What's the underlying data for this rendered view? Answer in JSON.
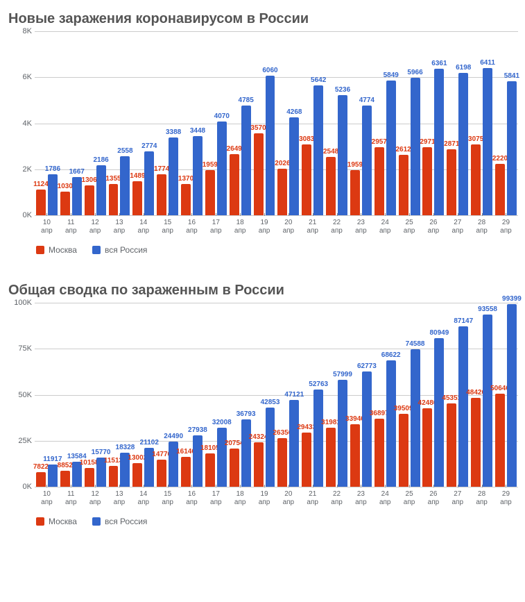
{
  "legend": {
    "moscow": "Москва",
    "russia": "вся Россия"
  },
  "colors": {
    "moscow": "#dc3912",
    "russia": "#3366cc",
    "moscow_text": "#dc3912",
    "russia_text": "#3366cc",
    "grid": "#cccccc",
    "axis": "#888888",
    "title": "#555555",
    "tick": "#5f6368",
    "background": "#ffffff"
  },
  "x_labels": [
    {
      "d": "10",
      "m": "апр"
    },
    {
      "d": "11",
      "m": "апр"
    },
    {
      "d": "12",
      "m": "апр"
    },
    {
      "d": "13",
      "m": "апр"
    },
    {
      "d": "14",
      "m": "апр"
    },
    {
      "d": "15",
      "m": "апр"
    },
    {
      "d": "16",
      "m": "апр"
    },
    {
      "d": "17",
      "m": "апр"
    },
    {
      "d": "18",
      "m": "апр"
    },
    {
      "d": "19",
      "m": "апр"
    },
    {
      "d": "20",
      "m": "апр"
    },
    {
      "d": "21",
      "m": "апр"
    },
    {
      "d": "22",
      "m": "апр"
    },
    {
      "d": "23",
      "m": "апр"
    },
    {
      "d": "24",
      "m": "апр"
    },
    {
      "d": "25",
      "m": "апр"
    },
    {
      "d": "26",
      "m": "апр"
    },
    {
      "d": "27",
      "m": "апр"
    },
    {
      "d": "28",
      "m": "апр"
    },
    {
      "d": "29",
      "m": "апр"
    }
  ],
  "chart1": {
    "title": "Новые заражения коронавирусом в России",
    "type": "bar-grouped",
    "ymax": 8000,
    "yticks": [
      {
        "v": 0,
        "label": "0K"
      },
      {
        "v": 2000,
        "label": "2K"
      },
      {
        "v": 4000,
        "label": "4K"
      },
      {
        "v": 6000,
        "label": "6K"
      },
      {
        "v": 8000,
        "label": "8K"
      }
    ],
    "bar_width": 0.4,
    "data": [
      {
        "moscow": 1124,
        "russia": 1786
      },
      {
        "moscow": 1030,
        "russia": 1667
      },
      {
        "moscow": 1306,
        "russia": 2186
      },
      {
        "moscow": 1355,
        "russia": 2558
      },
      {
        "moscow": 1489,
        "russia": 2774
      },
      {
        "moscow": 1774,
        "russia": 3388
      },
      {
        "moscow": 1370,
        "russia": 3448
      },
      {
        "moscow": 1959,
        "russia": 4070
      },
      {
        "moscow": 2649,
        "russia": 4785
      },
      {
        "moscow": 3570,
        "russia": 6060
      },
      {
        "moscow": 2026,
        "russia": 4268
      },
      {
        "moscow": 3083,
        "russia": 5642
      },
      {
        "moscow": 2548,
        "russia": 5236
      },
      {
        "moscow": 1959,
        "russia": 4774
      },
      {
        "moscow": 2957,
        "russia": 5849
      },
      {
        "moscow": 2612,
        "russia": 5966
      },
      {
        "moscow": 2971,
        "russia": 6361
      },
      {
        "moscow": 2871,
        "russia": 6198
      },
      {
        "moscow": 3075,
        "russia": 6411
      },
      {
        "moscow": 2220,
        "russia": 5841
      }
    ]
  },
  "chart2": {
    "title": "Общая сводка по зараженным в России",
    "type": "bar-grouped",
    "ymax": 100000,
    "yticks": [
      {
        "v": 0,
        "label": "0K"
      },
      {
        "v": 25000,
        "label": "25K"
      },
      {
        "v": 50000,
        "label": "50K"
      },
      {
        "v": 75000,
        "label": "75K"
      },
      {
        "v": 100000,
        "label": "100K"
      }
    ],
    "bar_width": 0.4,
    "data": [
      {
        "moscow": 7822,
        "russia": 11917
      },
      {
        "moscow": 8852,
        "russia": 13584
      },
      {
        "moscow": 10158,
        "russia": 15770
      },
      {
        "moscow": 11513,
        "russia": 18328
      },
      {
        "moscow": 13002,
        "russia": 21102
      },
      {
        "moscow": 14776,
        "russia": 24490
      },
      {
        "moscow": 16146,
        "russia": 27938
      },
      {
        "moscow": 18105,
        "russia": 32008
      },
      {
        "moscow": 20754,
        "russia": 36793
      },
      {
        "moscow": 24324,
        "russia": 42853
      },
      {
        "moscow": 26350,
        "russia": 47121
      },
      {
        "moscow": 29433,
        "russia": 52763
      },
      {
        "moscow": 31981,
        "russia": 57999
      },
      {
        "moscow": 33940,
        "russia": 62773
      },
      {
        "moscow": 36897,
        "russia": 68622
      },
      {
        "moscow": 39509,
        "russia": 74588
      },
      {
        "moscow": 42480,
        "russia": 80949
      },
      {
        "moscow": 45351,
        "russia": 87147
      },
      {
        "moscow": 48426,
        "russia": 93558
      },
      {
        "moscow": 50646,
        "russia": 99399
      }
    ]
  }
}
